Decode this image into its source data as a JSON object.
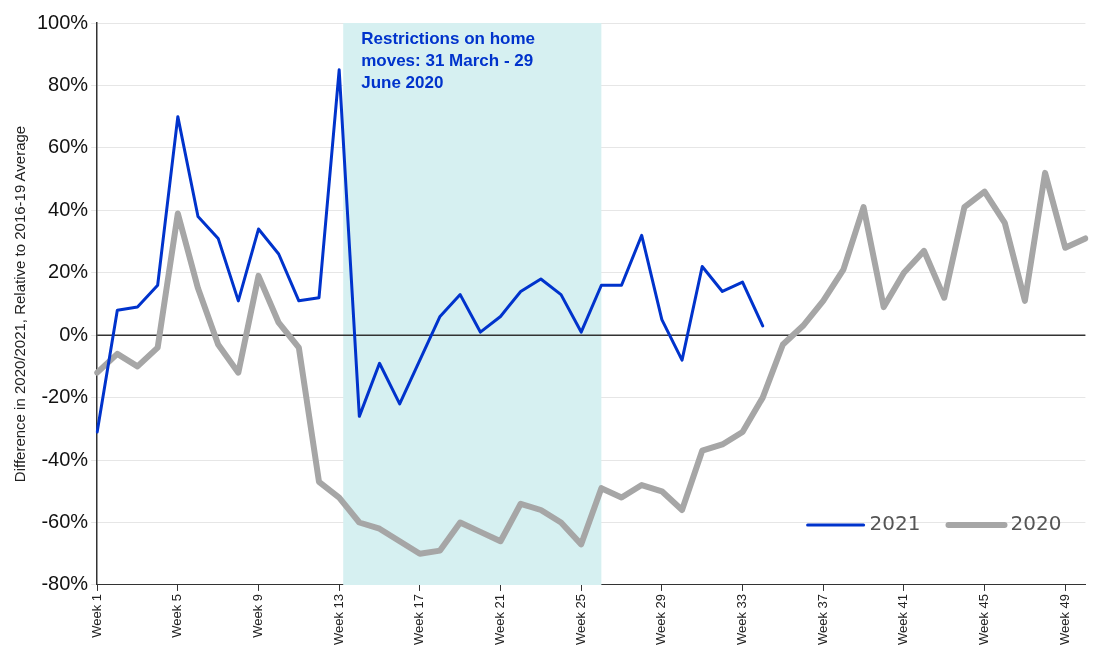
{
  "chart_data": {
    "type": "line",
    "ylabel": "Difference in 2020/2021, Relative to 2016-19 Average",
    "categories": [
      "Week 1",
      null,
      null,
      null,
      "Week 5",
      null,
      null,
      null,
      "Week 9",
      null,
      null,
      null,
      "Week 13",
      null,
      null,
      null,
      "Week 17",
      null,
      null,
      null,
      "Week 21",
      null,
      null,
      null,
      "Week 25",
      null,
      null,
      null,
      "Week 29",
      null,
      null,
      null,
      "Week 33",
      null,
      null,
      null,
      "Week 37",
      null,
      null,
      null,
      "Week 41",
      null,
      null,
      null,
      "Week 45",
      null,
      null,
      null,
      "Week 49",
      null
    ],
    "ylim": [
      -80,
      100
    ],
    "yticks": [
      {
        "value": -80,
        "label": "-80%"
      },
      {
        "value": -60,
        "label": "-60%"
      },
      {
        "value": -40,
        "label": "-40%"
      },
      {
        "value": -20,
        "label": "-20%"
      },
      {
        "value": 0,
        "label": "0%"
      },
      {
        "value": 20,
        "label": "20%"
      },
      {
        "value": 40,
        "label": "40%"
      },
      {
        "value": 60,
        "label": "60%"
      },
      {
        "value": 80,
        "label": "80%"
      },
      {
        "value": 100,
        "label": "100%"
      }
    ],
    "series": [
      {
        "name": "2021",
        "color": "#0033cc",
        "values": [
          -31,
          8,
          9,
          16,
          70,
          38,
          31,
          11,
          34,
          26,
          11,
          12,
          85,
          -26,
          -9,
          -22,
          -8,
          6,
          13,
          1,
          6,
          14,
          18,
          13,
          1,
          16,
          16,
          32,
          5,
          -8,
          22,
          14,
          17,
          3,
          null,
          null,
          null,
          null,
          null,
          null,
          null,
          null,
          null,
          null,
          null,
          null,
          null,
          null,
          null,
          null
        ]
      },
      {
        "name": "2020",
        "color": "#a6a6a6",
        "values": [
          -12,
          -6,
          -10,
          -4,
          39,
          15,
          -3,
          -12,
          19,
          4,
          -4,
          -47,
          -52,
          -60,
          -62,
          -66,
          -70,
          -69,
          -60,
          -63,
          -66,
          -54,
          -56,
          -60,
          -67,
          -49,
          -52,
          -48,
          -50,
          -56,
          -37,
          -35,
          -31,
          -20,
          -3,
          3,
          11,
          21,
          41,
          9,
          20,
          27,
          12,
          41,
          46,
          36,
          11,
          52,
          28,
          31
        ]
      }
    ],
    "annotations": [
      "Restrictions on home moves: 31 March - 29 June 2020"
    ],
    "grid": "y",
    "legend": "bottom right",
    "marker": "none",
    "line_style": "solid"
  }
}
